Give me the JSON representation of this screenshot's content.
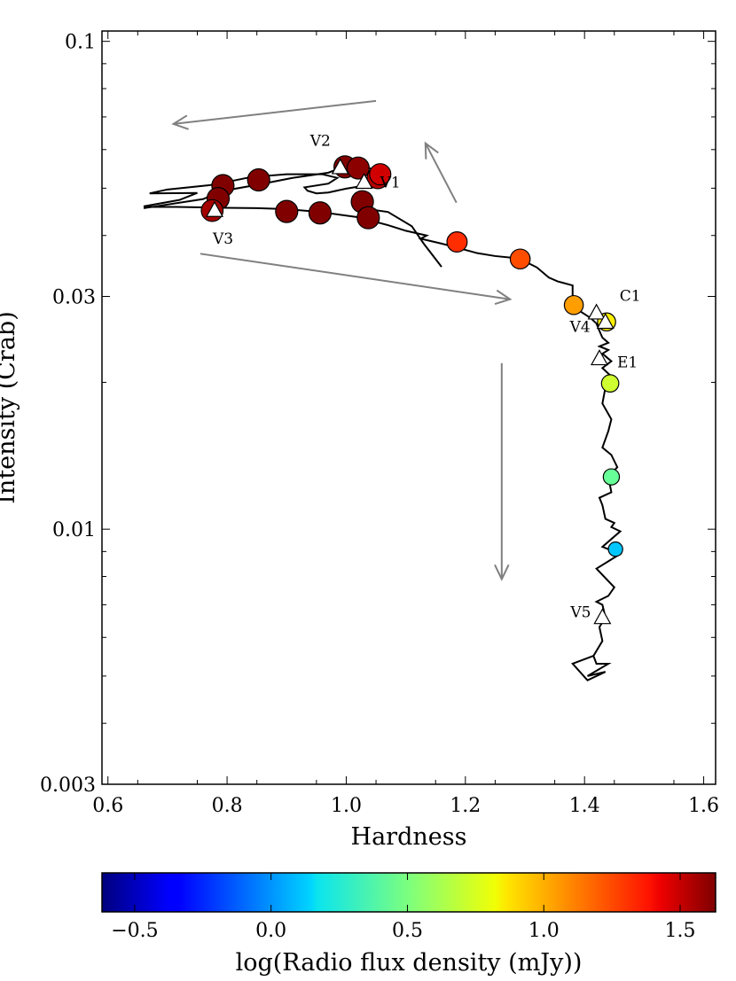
{
  "chart_data": {
    "type": "scatter",
    "title": "",
    "xlabel": "Hardness",
    "ylabel": "Intensity (Crab)",
    "xlim": [
      0.59,
      1.62
    ],
    "ylim": [
      0.003,
      0.105
    ],
    "yscale": "log",
    "x_ticks": [
      0.6,
      0.8,
      1.0,
      1.2,
      1.4,
      1.6
    ],
    "x_tick_labels": [
      "0.6",
      "0.8",
      "1.0",
      "1.2",
      "1.4",
      "1.6"
    ],
    "y_ticks": [
      0.003,
      0.01,
      0.03,
      0.1
    ],
    "y_tick_labels": [
      "0.003",
      "0.01",
      "0.03",
      "0.1"
    ],
    "track": {
      "name": "hardness-intensity track",
      "x": [
        0.66,
        0.76,
        0.79,
        0.85,
        0.91,
        0.97,
        0.985,
        1.0,
        1.02,
        1.04,
        1.06,
        1.045,
        1.03,
        1.0,
        0.97,
        0.95,
        0.935,
        0.93,
        0.97,
        0.985,
        0.96,
        0.9,
        0.84,
        0.8,
        0.77,
        0.7,
        0.67,
        0.75,
        0.72,
        0.66,
        0.79,
        0.85,
        0.9,
        0.955,
        1.02,
        1.07,
        1.1,
        1.135,
        1.125,
        1.16,
        1.185,
        1.22,
        1.25,
        1.29,
        1.32,
        1.34,
        1.355,
        1.38,
        1.38,
        1.39,
        1.4,
        1.41,
        1.42,
        1.425,
        1.43,
        1.44,
        1.425,
        1.44,
        1.43,
        1.445,
        1.43,
        1.45,
        1.435,
        1.43,
        1.445,
        1.44,
        1.43,
        1.445,
        1.455,
        1.44,
        1.445,
        1.425,
        1.43,
        1.435,
        1.45,
        1.445,
        1.46,
        1.43,
        1.46,
        1.42,
        1.45,
        1.44,
        1.42,
        1.43,
        1.435,
        1.425,
        1.43,
        1.415,
        1.42,
        1.44,
        1.405,
        1.435,
        1.405,
        1.38,
        1.415
      ],
      "y": [
        0.0455,
        0.0475,
        0.0493,
        0.0508,
        0.0525,
        0.0538,
        0.0547,
        0.0555,
        0.0553,
        0.0549,
        0.0535,
        0.0519,
        0.0506,
        0.0499,
        0.049,
        0.0488,
        0.0494,
        0.0502,
        0.0511,
        0.0525,
        0.0534,
        0.0534,
        0.0527,
        0.0515,
        0.0507,
        0.0497,
        0.0488,
        0.0489,
        0.0473,
        0.0459,
        0.0456,
        0.0455,
        0.0453,
        0.0447,
        0.0436,
        0.042,
        0.0409,
        0.04,
        0.0394,
        0.0385,
        0.0378,
        0.0368,
        0.0363,
        0.0359,
        0.0344,
        0.0328,
        0.0322,
        0.0316,
        0.0293,
        0.0281,
        0.0276,
        0.0271,
        0.0264,
        0.0255,
        0.0247,
        0.0241,
        0.0237,
        0.0233,
        0.0229,
        0.0221,
        0.0214,
        0.0203,
        0.0195,
        0.0181,
        0.0168,
        0.0159,
        0.0147,
        0.0142,
        0.0134,
        0.0128,
        0.0119,
        0.0116,
        0.0112,
        0.0105,
        0.0103,
        0.0101,
        0.0099,
        0.0092,
        0.0089,
        0.0083,
        0.0076,
        0.0073,
        0.0071,
        0.007,
        0.0066,
        0.0063,
        0.0059,
        0.0055,
        0.0053,
        0.0053,
        0.005,
        0.0051,
        0.0049,
        0.0053,
        0.0055
      ]
    },
    "branch_track": {
      "name": "branch",
      "x": [
        1.02,
        1.07,
        1.11,
        1.13,
        1.16
      ],
      "y": [
        0.0456,
        0.0447,
        0.0418,
        0.0385,
        0.0345
      ]
    },
    "radio_points": [
      {
        "x": 0.793,
        "y": 0.0506,
        "log_flux": 1.63
      },
      {
        "x": 0.785,
        "y": 0.0476,
        "log_flux": 1.63
      },
      {
        "x": 0.775,
        "y": 0.045,
        "log_flux": 1.55
      },
      {
        "x": 0.853,
        "y": 0.052,
        "log_flux": 1.63
      },
      {
        "x": 0.9,
        "y": 0.0448,
        "log_flux": 1.63
      },
      {
        "x": 0.956,
        "y": 0.0445,
        "log_flux": 1.63
      },
      {
        "x": 0.998,
        "y": 0.0553,
        "log_flux": 1.63
      },
      {
        "x": 1.02,
        "y": 0.055,
        "log_flux": 1.6
      },
      {
        "x": 1.053,
        "y": 0.0525,
        "log_flux": 1.5
      },
      {
        "x": 1.057,
        "y": 0.0534,
        "log_flux": 1.45
      },
      {
        "x": 1.027,
        "y": 0.0469,
        "log_flux": 1.63
      },
      {
        "x": 1.037,
        "y": 0.0435,
        "log_flux": 1.63
      },
      {
        "x": 1.186,
        "y": 0.0388,
        "log_flux": 1.25
      },
      {
        "x": 1.292,
        "y": 0.0358,
        "log_flux": 1.18
      },
      {
        "x": 1.382,
        "y": 0.0288,
        "log_flux": 1.0
      },
      {
        "x": 1.437,
        "y": 0.0266,
        "log_flux": 0.82
      },
      {
        "x": 1.443,
        "y": 0.0199,
        "log_flux": 0.68
      },
      {
        "x": 1.445,
        "y": 0.0128,
        "log_flux": 0.45
      },
      {
        "x": 1.452,
        "y": 0.0091,
        "log_flux": 0.1
      }
    ],
    "markers": [
      {
        "label": "V1",
        "x": 1.03,
        "y": 0.0515
      },
      {
        "label": "V2",
        "x": 0.99,
        "y": 0.0552
      },
      {
        "label": "V3",
        "x": 0.779,
        "y": 0.0451
      },
      {
        "label": "V4",
        "x": 1.42,
        "y": 0.0278
      },
      {
        "label": "C1",
        "x": 1.435,
        "y": 0.0266
      },
      {
        "label": "E1",
        "x": 1.425,
        "y": 0.0224
      },
      {
        "label": "V5",
        "x": 1.43,
        "y": 0.0066
      }
    ],
    "arrows": [
      {
        "from": [
          1.05,
          0.0755
        ],
        "to": [
          0.71,
          0.0677
        ],
        "direction": "left"
      },
      {
        "from": [
          0.755,
          0.0367
        ],
        "to": [
          1.275,
          0.0296
        ],
        "direction": "right"
      },
      {
        "from": [
          1.185,
          0.0467
        ],
        "to": [
          1.133,
          0.0618
        ],
        "direction": "up-left"
      },
      {
        "from": [
          1.261,
          0.0219
        ],
        "to": [
          1.261,
          0.0079
        ],
        "direction": "down"
      }
    ],
    "colorbar": {
      "label": "log(Radio flux density (mJy))",
      "range": [
        -0.62,
        1.63
      ],
      "ticks": [
        -0.5,
        0.0,
        0.5,
        1.0,
        1.5
      ],
      "tick_labels": [
        "−0.5",
        "0.0",
        "0.5",
        "1.0",
        "1.5"
      ],
      "colormap": "jet"
    }
  }
}
